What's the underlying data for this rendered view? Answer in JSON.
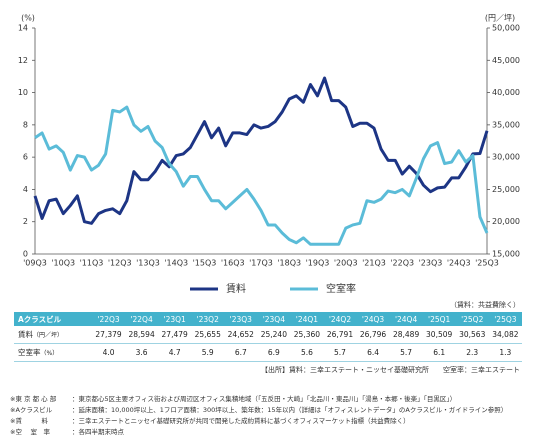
{
  "chart_data": {
    "type": "line",
    "y_label": "(%)",
    "y2_label": "(円／坪)",
    "categories": [
      "'09Q3",
      null,
      null,
      null,
      "'10Q3",
      null,
      null,
      null,
      "'11Q3",
      null,
      null,
      null,
      "'12Q3",
      null,
      null,
      null,
      "'13Q3",
      null,
      null,
      null,
      "'14Q3",
      null,
      null,
      null,
      "'15Q3",
      null,
      null,
      null,
      "'16Q3",
      null,
      null,
      null,
      "'17Q3",
      null,
      null,
      null,
      "'18Q3",
      null,
      null,
      null,
      "'19Q3",
      null,
      null,
      null,
      "'20Q3",
      null,
      null,
      null,
      "'21Q3",
      null,
      null,
      null,
      "'22Q3",
      null,
      null,
      null,
      "'23Q3",
      null,
      null,
      null,
      "'24Q3",
      null,
      null,
      null,
      "'25Q3"
    ],
    "ylim": [
      0,
      14
    ],
    "yticks": [
      0,
      2,
      4,
      6,
      8,
      10,
      12,
      14
    ],
    "y2lim": [
      15000,
      50000
    ],
    "y2ticks": [
      {
        "value": 15000,
        "label": "15,000"
      },
      {
        "value": 20000,
        "label": "20,000"
      },
      {
        "value": 25000,
        "label": "25,000"
      },
      {
        "value": 30000,
        "label": "30,000"
      },
      {
        "value": 35000,
        "label": "35,000"
      },
      {
        "value": 40000,
        "label": "40,000"
      },
      {
        "value": 45000,
        "label": "45,000"
      },
      {
        "value": 50000,
        "label": "50,000"
      }
    ],
    "series": [
      {
        "name": "賃料",
        "color": "#1d3585",
        "axis": "y2",
        "values": [
          24000,
          20500,
          23250,
          23500,
          21250,
          22500,
          24000,
          20000,
          19750,
          21250,
          21750,
          22000,
          21250,
          23250,
          27750,
          26500,
          26500,
          27750,
          29500,
          28500,
          30250,
          30500,
          31500,
          33500,
          35500,
          33000,
          34500,
          31750,
          33750,
          33750,
          33500,
          35000,
          34500,
          34750,
          35500,
          37000,
          39000,
          39500,
          38500,
          41250,
          39500,
          42250,
          38750,
          38750,
          37750,
          34750,
          35250,
          35250,
          34500,
          31250,
          29500,
          29500,
          27379,
          28594,
          27479,
          25655,
          24652,
          25240,
          25360,
          26791,
          26796,
          28489,
          30509,
          30563,
          34082
        ]
      },
      {
        "name": "空室率",
        "color": "#5bbcd8",
        "values": [
          7.2,
          7.5,
          6.5,
          6.7,
          6.3,
          5.2,
          6.1,
          6.0,
          5.2,
          5.5,
          6.2,
          8.9,
          8.8,
          9.1,
          8.0,
          7.6,
          7.9,
          7.0,
          6.6,
          5.6,
          5.1,
          4.2,
          4.8,
          4.8,
          4.0,
          3.3,
          3.3,
          2.8,
          3.2,
          3.6,
          4.0,
          3.4,
          2.7,
          1.8,
          1.8,
          1.3,
          0.9,
          0.7,
          1.0,
          0.6,
          0.6,
          0.6,
          0.6,
          0.6,
          1.6,
          1.8,
          1.9,
          3.3,
          3.2,
          3.4,
          3.9,
          3.8,
          4.0,
          3.6,
          4.7,
          5.9,
          6.7,
          6.9,
          5.6,
          5.7,
          6.4,
          5.7,
          6.1,
          2.3,
          1.3
        ]
      }
    ]
  },
  "table": {
    "note": "（賃料：共益費除く）",
    "header": [
      "Aクラスビル",
      "'22Q3",
      "'22Q4",
      "'23Q1",
      "'23Q2",
      "'23Q3",
      "'23Q4",
      "'24Q1",
      "'24Q2",
      "'24Q3",
      "'24Q4",
      "'25Q1",
      "'25Q2",
      "'25Q3"
    ],
    "rows": [
      {
        "label": "賃料",
        "unit": "（円／坪）",
        "cells": [
          "27,379",
          "28,594",
          "27,479",
          "25,655",
          "24,652",
          "25,240",
          "25,360",
          "26,791",
          "26,796",
          "28,489",
          "30,509",
          "30,563",
          "34,082"
        ]
      },
      {
        "label": "空室率",
        "unit": "（%）",
        "cells": [
          "4.0",
          "3.6",
          "4.7",
          "5.9",
          "6.7",
          "6.9",
          "5.6",
          "5.7",
          "6.4",
          "5.7",
          "6.1",
          "2.3",
          "1.3"
        ]
      }
    ],
    "source": "【出所】賃料：三幸エステート・ニッセイ基礎研究所　　空室率：三幸エステート"
  },
  "notes": [
    {
      "label": "※東 京 都 心 部",
      "text": "：東京都心5区主要オフィス街および周辺区オフィス集積地域（「五反田・大崎」「北品川・東品川」「湯島・本郷・後楽」「目黒区」）"
    },
    {
      "label": "※Aクラスビル",
      "text": "：延床面積：10,000坪以上、1フロア面積：300坪以上、築年数：15年以内（詳細は「オフィスレントデータ」のAクラスビル・ガイドライン参照）"
    },
    {
      "label": "※賃　　　料",
      "text": "：三幸エステートとニッセイ基礎研究所が共同で開発した成約賃料に基づくオフィスマーケット指標（共益費除く）"
    },
    {
      "label": "※空　 室　率",
      "text": "：各四半期末時点"
    }
  ]
}
